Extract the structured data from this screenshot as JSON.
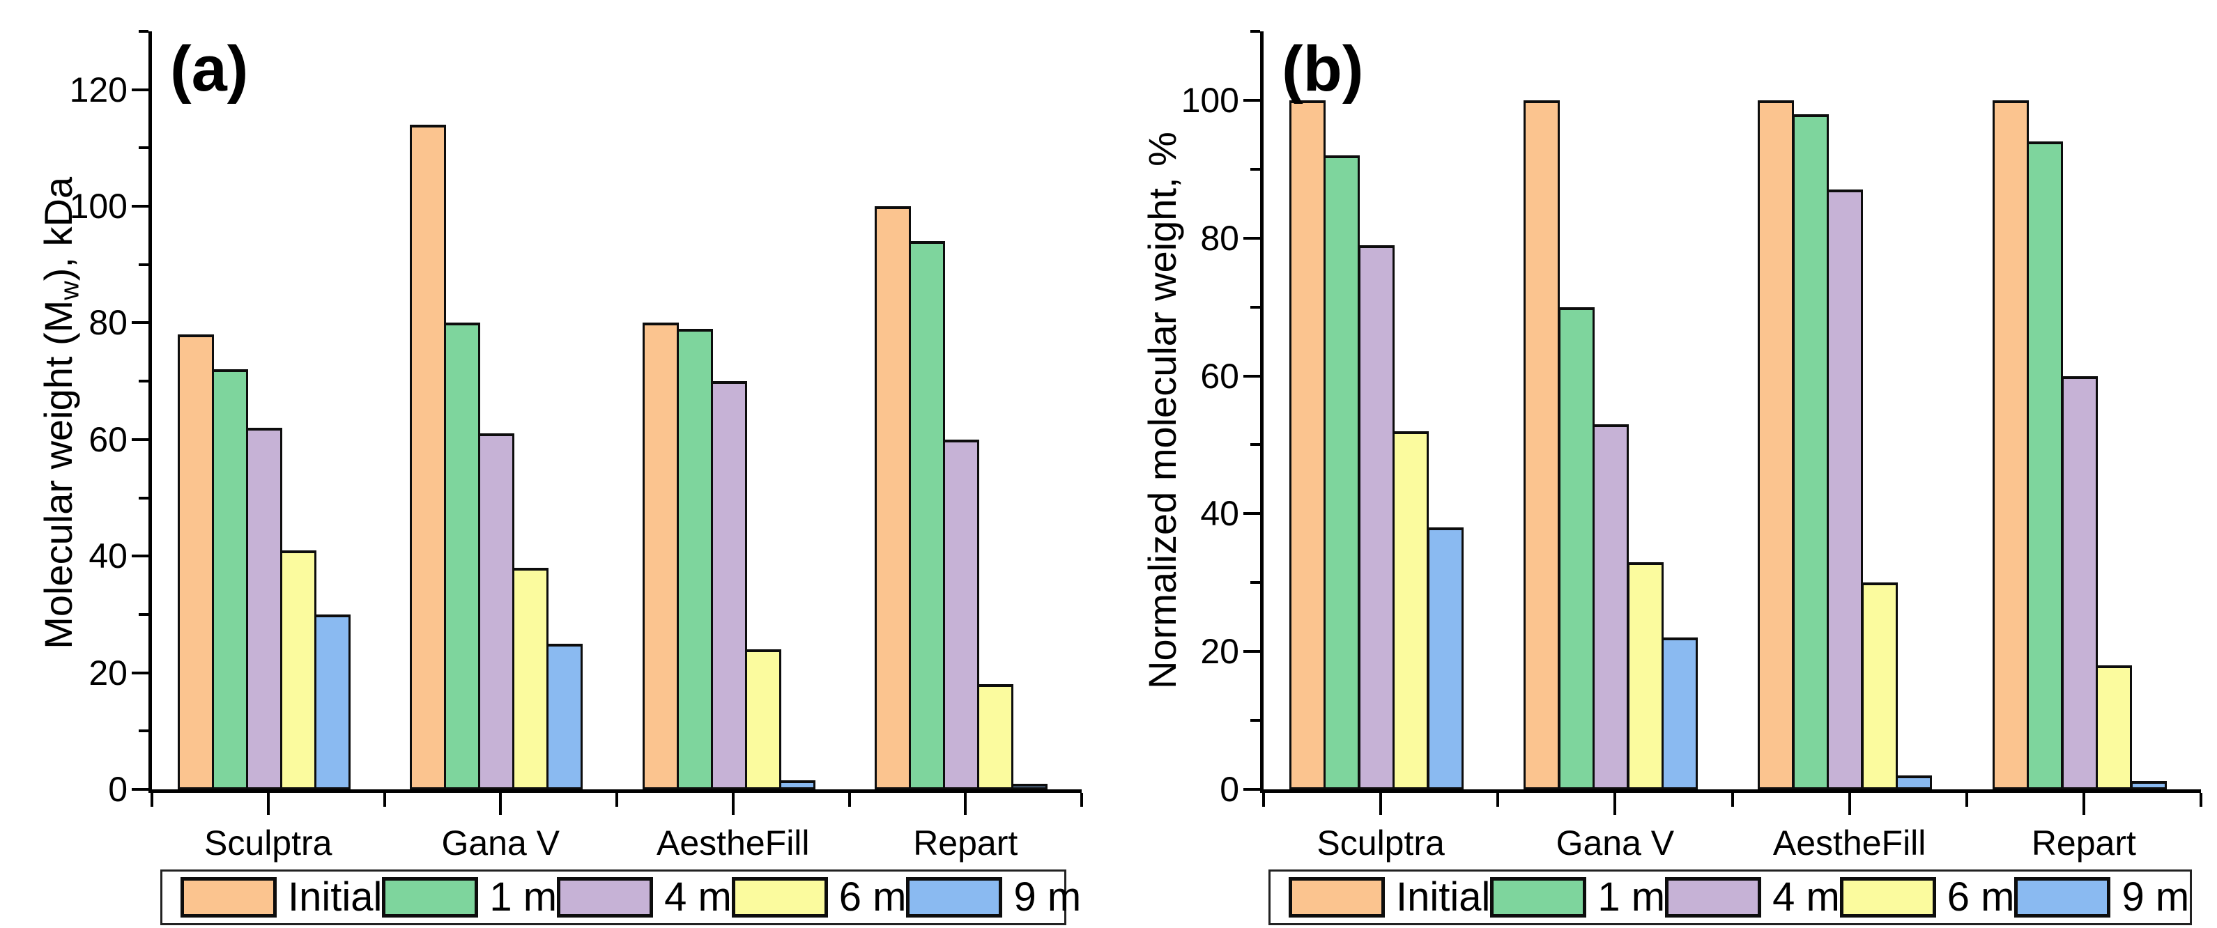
{
  "figure_type": "two-panel grouped bar chart",
  "bar_outline_color": "#0d0d0d",
  "axis_color": "#000000",
  "background_color": "#ffffff",
  "chart_data": [
    {
      "type": "bar",
      "panel_label": "(a)",
      "title": "",
      "xlabel": "",
      "ylabel": "Molecular weight (Mw), kDa",
      "ylabel_parts": [
        {
          "text": "Molecular weight (M",
          "sub": false
        },
        {
          "text": "w",
          "sub": true
        },
        {
          "text": "), kDa",
          "sub": false
        }
      ],
      "categories": [
        "Sculptra",
        "Gana V",
        "AestheFill",
        "Repart"
      ],
      "series": [
        {
          "name": "Initial",
          "color": "#FBC48F",
          "values": [
            78,
            114,
            80,
            100
          ]
        },
        {
          "name": "1 m",
          "color": "#7ED59D",
          "values": [
            72,
            80,
            79,
            94
          ]
        },
        {
          "name": "4 m",
          "color": "#C6B2D6",
          "values": [
            62,
            61,
            70,
            60
          ]
        },
        {
          "name": "6 m",
          "color": "#FBFB9E",
          "values": [
            41,
            38,
            24,
            18
          ]
        },
        {
          "name": "9 m",
          "color": "#8ABAF1",
          "values": [
            30,
            25,
            1.5,
            1
          ]
        }
      ],
      "ylim": [
        0,
        130
      ],
      "ytick_major_step": 20,
      "ytick_minor_step": 10,
      "ytick_labels": [
        0,
        20,
        40,
        60,
        80,
        100,
        120
      ],
      "grid": false,
      "legend_position": "bottom",
      "legend_labels": [
        "Initial",
        "1 m",
        "4 m",
        "6 m",
        "9 m"
      ]
    },
    {
      "type": "bar",
      "panel_label": "(b)",
      "title": "",
      "xlabel": "",
      "ylabel": "Normalized molecular weight, %",
      "ylabel_parts": [
        {
          "text": "Normalized molecular weight, %",
          "sub": false
        }
      ],
      "categories": [
        "Sculptra",
        "Gana V",
        "AestheFill",
        "Repart"
      ],
      "series": [
        {
          "name": "Initial",
          "color": "#FBC48F",
          "values": [
            100,
            100,
            100,
            100
          ]
        },
        {
          "name": "1 m",
          "color": "#7ED59D",
          "values": [
            92,
            70,
            98,
            94
          ]
        },
        {
          "name": "4 m",
          "color": "#C6B2D6",
          "values": [
            79,
            53,
            87,
            60
          ]
        },
        {
          "name": "6 m",
          "color": "#FBFB9E",
          "values": [
            52,
            33,
            30,
            18
          ]
        },
        {
          "name": "9 m",
          "color": "#8ABAF1",
          "values": [
            38,
            22,
            2,
            1.2
          ]
        }
      ],
      "ylim": [
        0,
        110
      ],
      "ytick_major_step": 20,
      "ytick_minor_step": 10,
      "ytick_labels": [
        0,
        20,
        40,
        60,
        80,
        100
      ],
      "grid": false,
      "legend_position": "bottom",
      "legend_labels": [
        "Initial",
        "1 m",
        "4 m",
        "6 m",
        "9 m"
      ]
    }
  ]
}
